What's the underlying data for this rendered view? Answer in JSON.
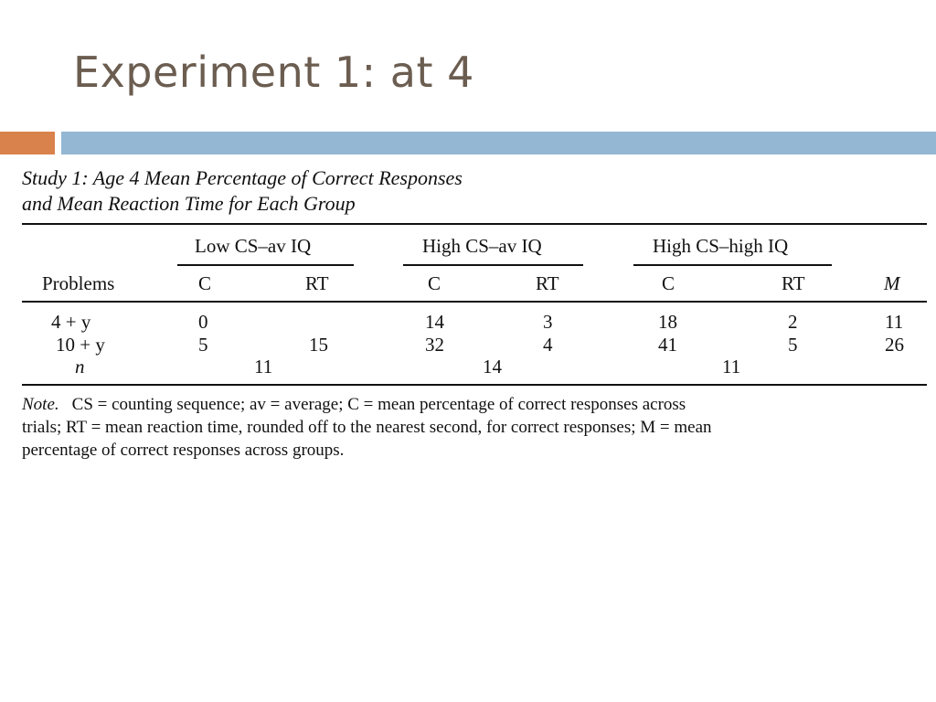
{
  "slide": {
    "title": "Experiment 1: at 4",
    "colors": {
      "title": "#6b5d50",
      "accent_orange": "#d9824b",
      "accent_blue": "#94b7d3"
    }
  },
  "table": {
    "caption_line1": "Study 1: Age 4 Mean Percentage of Correct Responses",
    "caption_line2": "and Mean Reaction Time for Each Group",
    "groups": [
      "Low CS–av IQ",
      "High CS–av IQ",
      "High CS–high IQ"
    ],
    "columns": {
      "problems": "Problems",
      "c1": "C",
      "rt1": "RT",
      "c2": "C",
      "rt2": "RT",
      "c3": "C",
      "rt3": "RT",
      "m": "M"
    },
    "rows": [
      {
        "problem": "4 + y",
        "c1": "0",
        "rt1": "",
        "c2": "14",
        "rt2": "3",
        "c3": "18",
        "rt3": "2",
        "m": "11"
      },
      {
        "problem": "10 + y",
        "c1": "5",
        "rt1": "15",
        "c2": "32",
        "rt2": "4",
        "c3": "41",
        "rt3": "5",
        "m": "26"
      }
    ],
    "n_row": {
      "label": "n",
      "g1": "11",
      "g2": "14",
      "g3": "11"
    }
  },
  "note": {
    "label": "Note.",
    "line1": "CS = counting sequence; av = average; C = mean percentage of correct responses across",
    "line2": "trials; RT = mean reaction time, rounded off to the nearest second, for correct responses; M = mean",
    "line3": "percentage of correct responses across groups."
  }
}
